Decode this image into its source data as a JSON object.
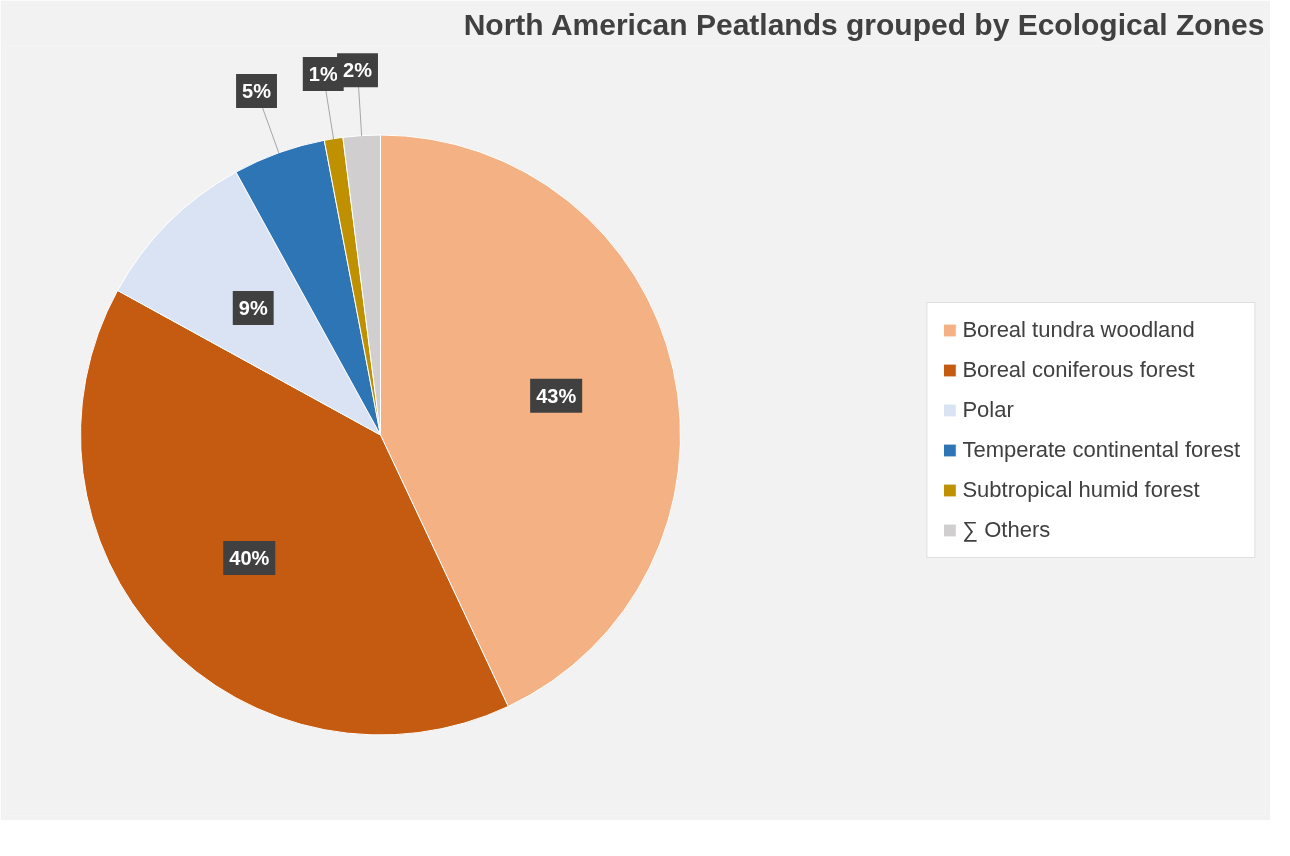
{
  "chart_data": {
    "type": "pie",
    "title": "North American Peatlands grouped by Ecological Zones",
    "categories": [
      "Boreal tundra woodland",
      "Boreal coniferous forest",
      "Polar",
      "Temperate continental forest",
      "Subtropical humid forest",
      "∑ Others"
    ],
    "values": [
      43,
      40,
      9,
      5,
      1,
      2
    ],
    "colors": [
      "#f4b183",
      "#c55a11",
      "#dae3f3",
      "#2e75b6",
      "#bf9000",
      "#d0cece"
    ],
    "value_labels": [
      "43%",
      "40%",
      "9%",
      "5%",
      "1%",
      "2%"
    ],
    "legend": "right"
  }
}
